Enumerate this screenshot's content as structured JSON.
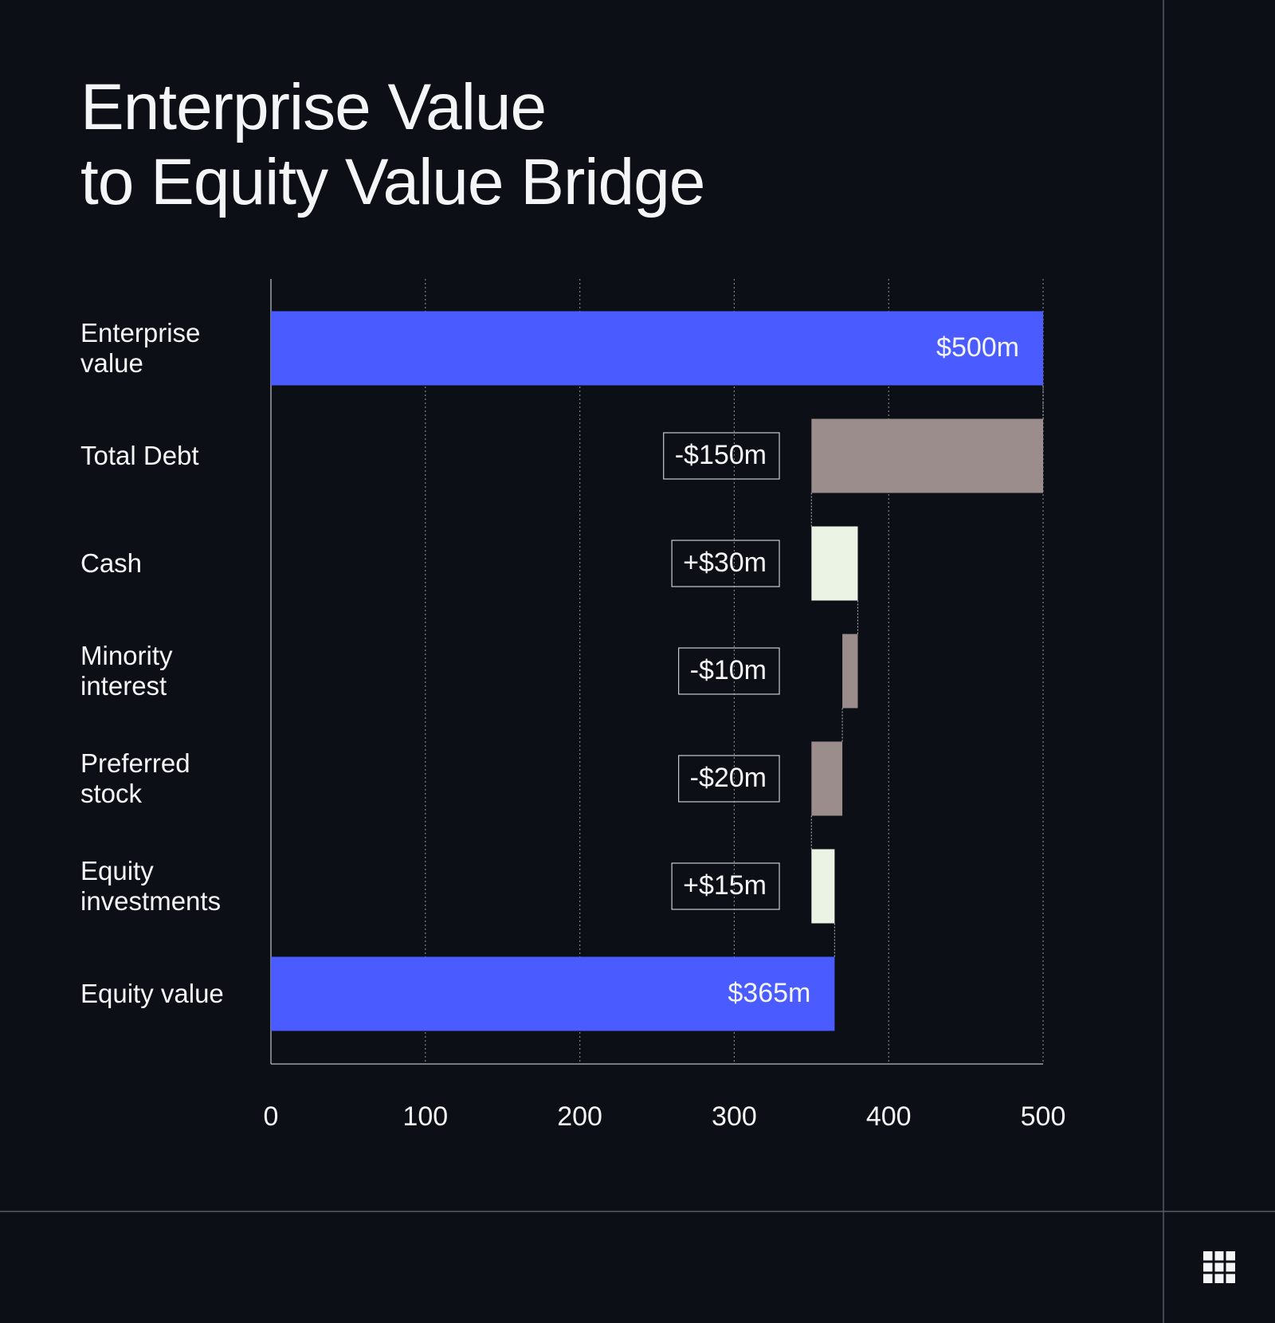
{
  "chart_data": {
    "type": "waterfall",
    "title": "Enterprise Value\nto Equity Value Bridge",
    "categories": [
      "Enterprise value",
      "Total Debt",
      "Cash",
      "Minority interest",
      "Preferred stock",
      "Equity investments",
      "Equity value"
    ],
    "values": [
      500,
      -150,
      30,
      -10,
      -20,
      15,
      365
    ],
    "value_labels": [
      "$500m",
      "-$150m",
      "+$30m",
      "-$10m",
      "-$20m",
      "+$15m",
      "$365m"
    ],
    "measures": [
      "absolute",
      "relative",
      "relative",
      "relative",
      "relative",
      "relative",
      "total"
    ],
    "total_color": "#4a5cff",
    "increase_color": "#eaf3e4",
    "decrease_color": "#9a8d8b",
    "xlim": [
      0,
      500
    ],
    "xticks": [
      0,
      100,
      200,
      300,
      400,
      500
    ],
    "grid": true
  }
}
